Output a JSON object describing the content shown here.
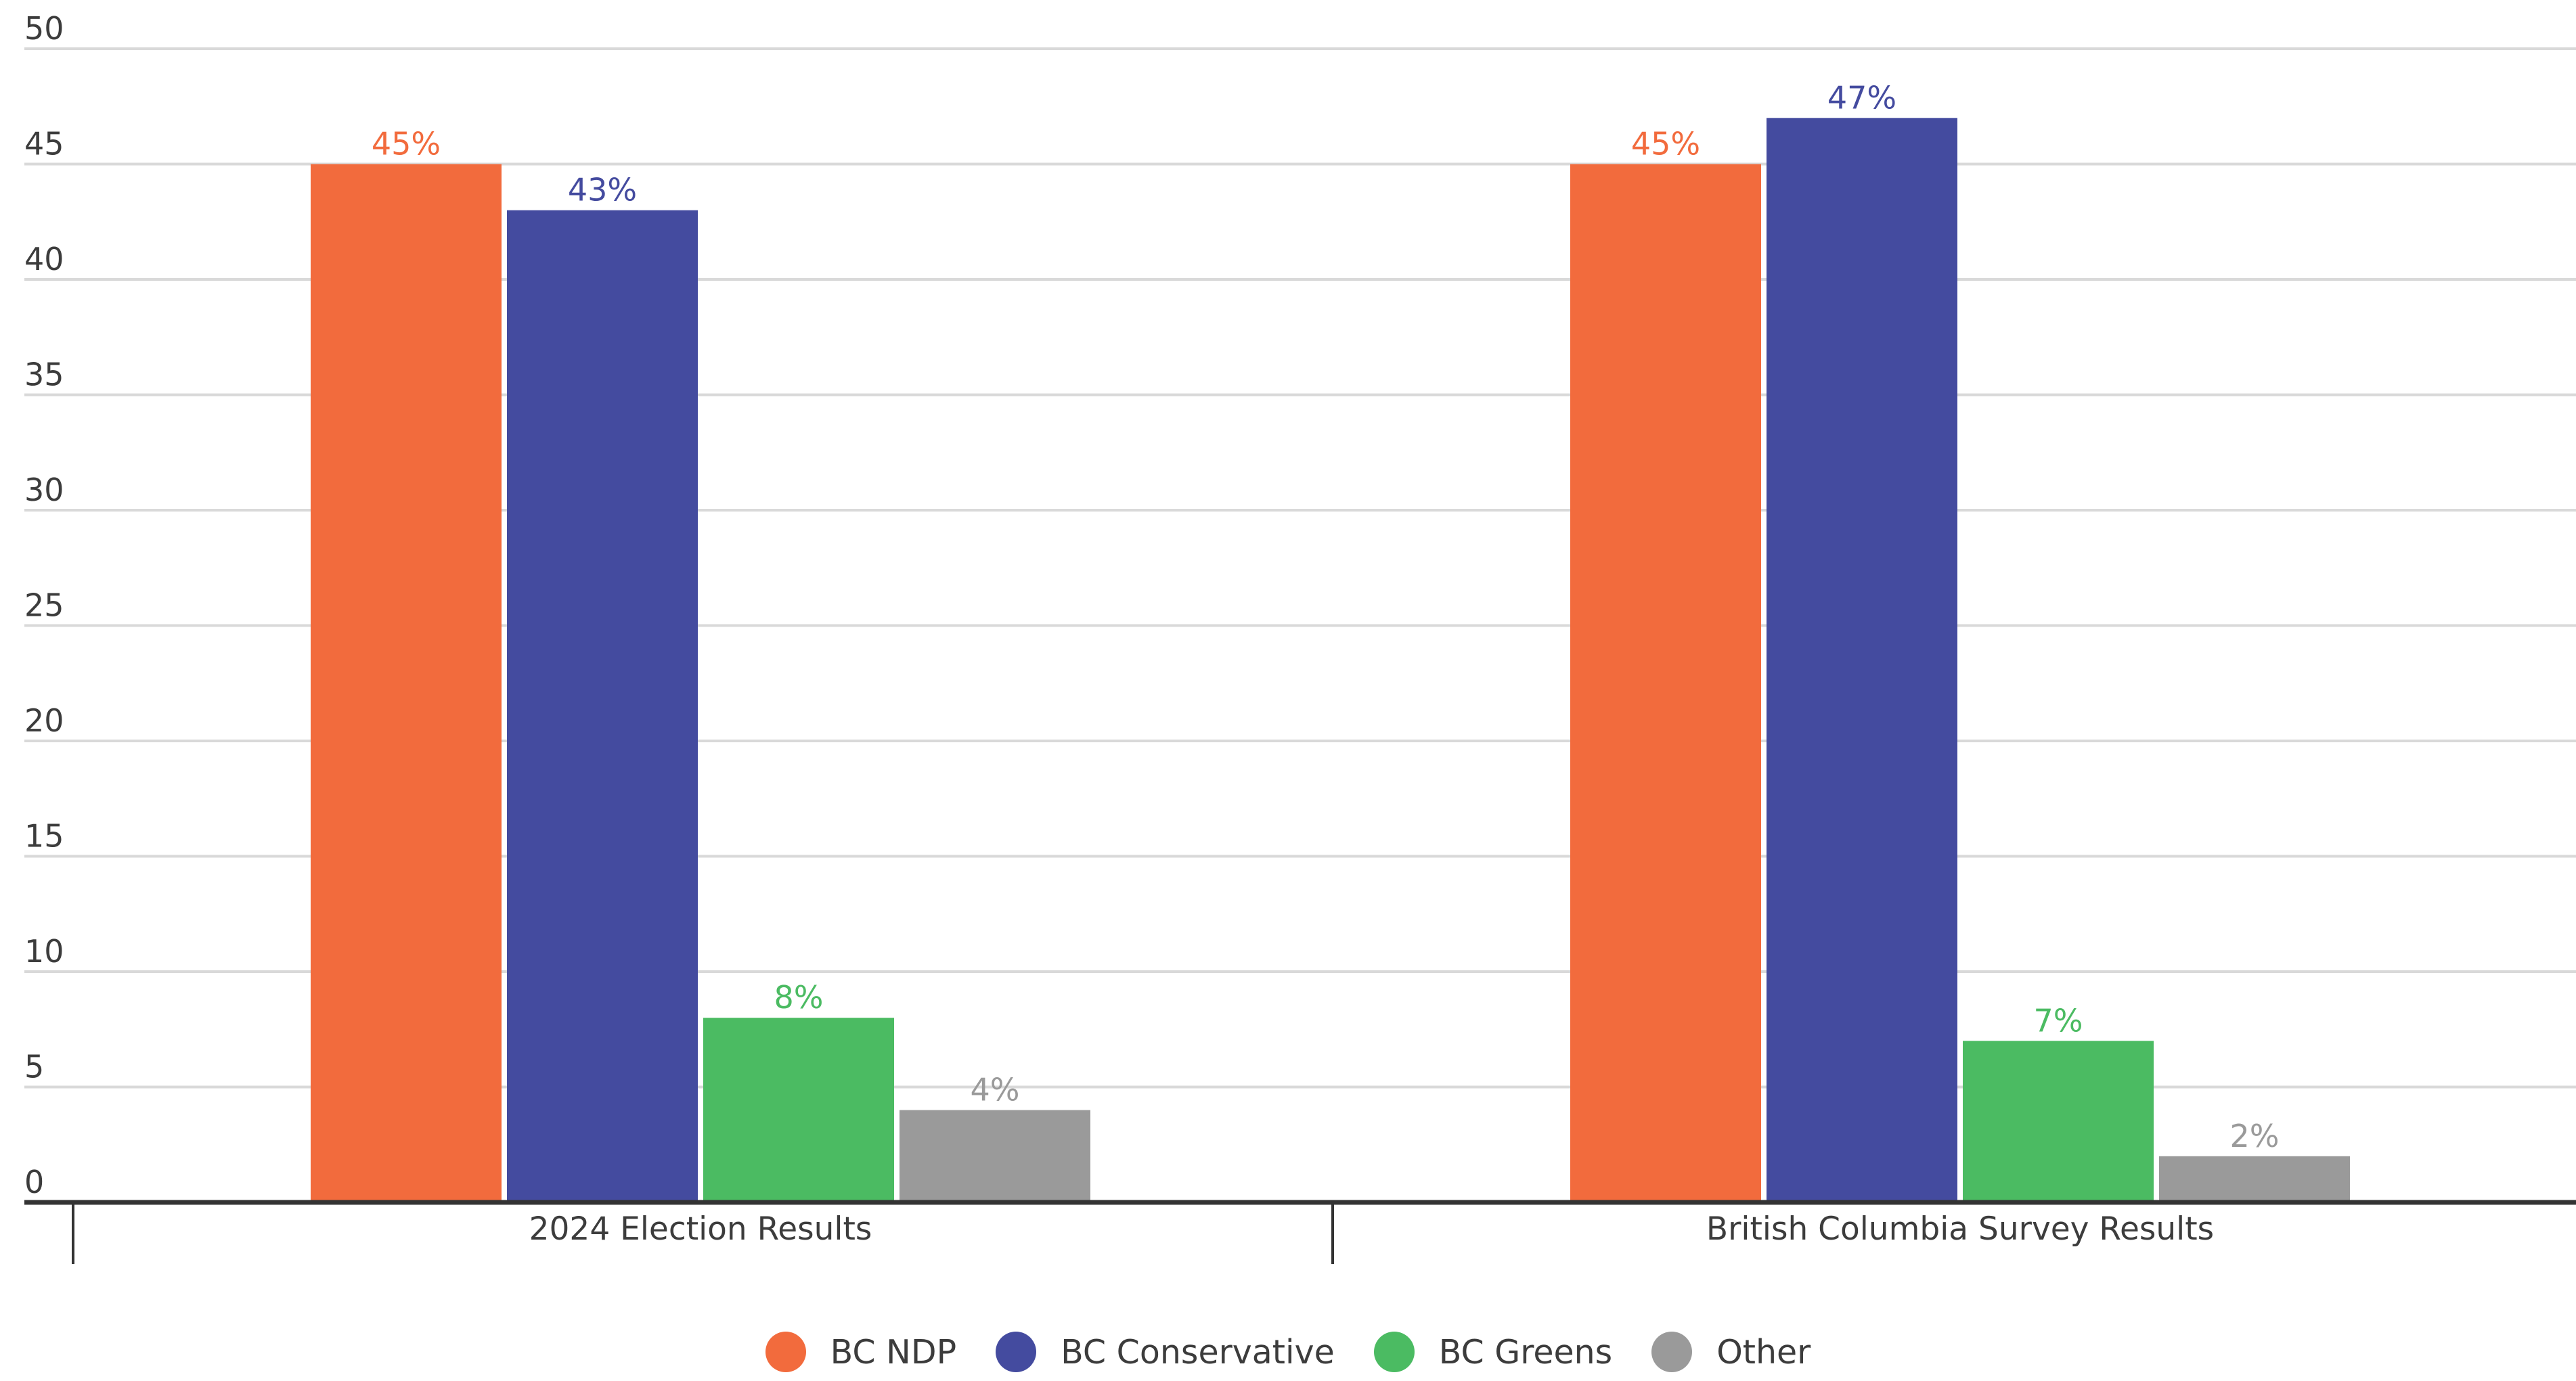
{
  "chart_data": {
    "type": "bar",
    "title": "",
    "xlabel": "",
    "ylabel": "",
    "ylim": [
      0,
      50
    ],
    "yticks": [
      0,
      5,
      10,
      15,
      20,
      25,
      30,
      35,
      40,
      45,
      50
    ],
    "grid": true,
    "legend_position": "bottom-center",
    "categories": [
      "2024 Election Results",
      "British Columbia Survey Results"
    ],
    "series": [
      {
        "name": "BC NDP",
        "color": "#f26b3d",
        "values": [
          45,
          45
        ],
        "labels": [
          "45%",
          "45%"
        ]
      },
      {
        "name": "BC Conservative",
        "color": "#444b9f",
        "values": [
          43,
          47
        ],
        "labels": [
          "43%",
          "47%"
        ]
      },
      {
        "name": "BC Greens",
        "color": "#4bbb62",
        "values": [
          8,
          7
        ],
        "labels": [
          "8%",
          "7%"
        ]
      },
      {
        "name": "Other",
        "color": "#9a9a9a",
        "values": [
          4,
          2
        ],
        "labels": [
          "4%",
          "2%"
        ]
      }
    ]
  }
}
